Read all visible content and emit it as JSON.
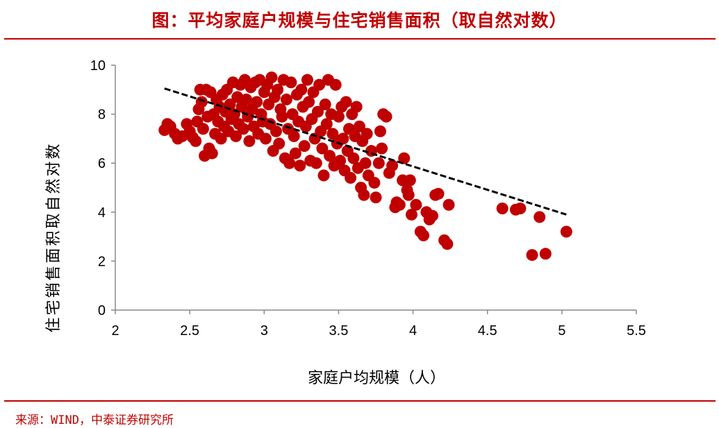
{
  "title": "图：平均家庭户规模与住宅销售面积（取自然对数）",
  "source": "来源：WIND，中泰证券研究所",
  "colors": {
    "accent": "#c00000",
    "points": "#c00000",
    "trend": "#000000"
  },
  "chart_data": {
    "type": "scatter",
    "xlabel": "家庭户均规模（人）",
    "ylabel": "住宅销售面积取自然对数",
    "xlim": [
      2,
      5.5
    ],
    "ylim": [
      0,
      10
    ],
    "xticks": [
      2,
      2.5,
      3,
      3.5,
      4,
      4.5,
      5,
      5.5
    ],
    "yticks": [
      0,
      2,
      4,
      6,
      8,
      10
    ],
    "grid": false,
    "trendline": {
      "style": "dashed",
      "x": [
        2.33,
        5.03
      ],
      "y": [
        9.05,
        3.9
      ]
    },
    "points": [
      [
        2.33,
        7.35
      ],
      [
        2.35,
        7.6
      ],
      [
        2.37,
        7.5
      ],
      [
        2.4,
        7.2
      ],
      [
        2.42,
        7.0
      ],
      [
        2.45,
        7.1
      ],
      [
        2.48,
        7.6
      ],
      [
        2.5,
        7.3
      ],
      [
        2.52,
        7.05
      ],
      [
        2.54,
        6.9
      ],
      [
        2.55,
        7.7
      ],
      [
        2.56,
        8.2
      ],
      [
        2.57,
        9.0
      ],
      [
        2.58,
        8.5
      ],
      [
        2.59,
        7.4
      ],
      [
        2.6,
        6.3
      ],
      [
        2.61,
        9.0
      ],
      [
        2.62,
        7.9
      ],
      [
        2.63,
        6.6
      ],
      [
        2.64,
        8.9
      ],
      [
        2.65,
        6.4
      ],
      [
        2.66,
        8.0
      ],
      [
        2.67,
        7.2
      ],
      [
        2.68,
        8.6
      ],
      [
        2.69,
        7.7
      ],
      [
        2.7,
        8.3
      ],
      [
        2.71,
        7.0
      ],
      [
        2.72,
        8.8
      ],
      [
        2.73,
        7.5
      ],
      [
        2.74,
        8.1
      ],
      [
        2.75,
        9.0
      ],
      [
        2.76,
        7.3
      ],
      [
        2.77,
        8.4
      ],
      [
        2.78,
        7.8
      ],
      [
        2.79,
        9.3
      ],
      [
        2.8,
        8.0
      ],
      [
        2.81,
        7.1
      ],
      [
        2.82,
        8.7
      ],
      [
        2.83,
        7.6
      ],
      [
        2.84,
        9.2
      ],
      [
        2.85,
        8.3
      ],
      [
        2.86,
        7.4
      ],
      [
        2.87,
        9.4
      ],
      [
        2.88,
        8.6
      ],
      [
        2.89,
        7.9
      ],
      [
        2.9,
        6.9
      ],
      [
        2.91,
        9.1
      ],
      [
        2.92,
        8.2
      ],
      [
        2.93,
        7.5
      ],
      [
        2.94,
        9.3
      ],
      [
        2.95,
        8.5
      ],
      [
        2.96,
        7.2
      ],
      [
        2.97,
        9.4
      ],
      [
        2.98,
        8.0
      ],
      [
        2.99,
        7.7
      ],
      [
        3.0,
        8.9
      ],
      [
        3.01,
        7.0
      ],
      [
        3.02,
        9.2
      ],
      [
        3.03,
        8.4
      ],
      [
        3.04,
        7.6
      ],
      [
        3.05,
        9.5
      ],
      [
        3.06,
        6.5
      ],
      [
        3.07,
        8.7
      ],
      [
        3.08,
        7.3
      ],
      [
        3.09,
        9.0
      ],
      [
        3.1,
        6.8
      ],
      [
        3.11,
        8.2
      ],
      [
        3.12,
        7.9
      ],
      [
        3.13,
        9.4
      ],
      [
        3.14,
        6.2
      ],
      [
        3.15,
        8.6
      ],
      [
        3.16,
        7.4
      ],
      [
        3.17,
        6.0
      ],
      [
        3.18,
        9.3
      ],
      [
        3.19,
        8.0
      ],
      [
        3.2,
        7.1
      ],
      [
        3.21,
        6.4
      ],
      [
        3.22,
        8.8
      ],
      [
        3.23,
        7.7
      ],
      [
        3.24,
        5.9
      ],
      [
        3.25,
        9.0
      ],
      [
        3.26,
        8.3
      ],
      [
        3.27,
        6.7
      ],
      [
        3.28,
        7.5
      ],
      [
        3.29,
        9.4
      ],
      [
        3.3,
        8.5
      ],
      [
        3.31,
        6.1
      ],
      [
        3.32,
        7.8
      ],
      [
        3.33,
        8.9
      ],
      [
        3.34,
        7.0
      ],
      [
        3.35,
        6.0
      ],
      [
        3.36,
        8.1
      ],
      [
        3.37,
        9.2
      ],
      [
        3.38,
        7.3
      ],
      [
        3.39,
        6.6
      ],
      [
        3.4,
        5.5
      ],
      [
        3.41,
        8.4
      ],
      [
        3.42,
        7.6
      ],
      [
        3.43,
        9.4
      ],
      [
        3.44,
        6.3
      ],
      [
        3.45,
        8.0
      ],
      [
        3.46,
        7.2
      ],
      [
        3.47,
        5.9
      ],
      [
        3.48,
        9.2
      ],
      [
        3.49,
        6.8
      ],
      [
        3.5,
        7.9
      ],
      [
        3.51,
        6.1
      ],
      [
        3.52,
        8.3
      ],
      [
        3.53,
        7.0
      ],
      [
        3.54,
        5.7
      ],
      [
        3.55,
        8.5
      ],
      [
        3.56,
        6.5
      ],
      [
        3.57,
        7.4
      ],
      [
        3.58,
        5.4
      ],
      [
        3.59,
        8.0
      ],
      [
        3.6,
        6.2
      ],
      [
        3.61,
        7.1
      ],
      [
        3.62,
        8.3
      ],
      [
        3.63,
        5.8
      ],
      [
        3.64,
        7.5
      ],
      [
        3.65,
        5.0
      ],
      [
        3.66,
        6.9
      ],
      [
        3.67,
        4.7
      ],
      [
        3.68,
        6.0
      ],
      [
        3.69,
        7.2
      ],
      [
        3.7,
        5.5
      ],
      [
        3.72,
        6.5
      ],
      [
        3.74,
        5.2
      ],
      [
        3.75,
        4.6
      ],
      [
        3.77,
        6.0
      ],
      [
        3.78,
        7.3
      ],
      [
        3.79,
        6.6
      ],
      [
        3.8,
        8.0
      ],
      [
        3.82,
        7.9
      ],
      [
        3.84,
        5.6
      ],
      [
        3.86,
        5.9
      ],
      [
        3.88,
        4.2
      ],
      [
        3.89,
        4.4
      ],
      [
        3.91,
        4.3
      ],
      [
        3.93,
        5.3
      ],
      [
        3.94,
        6.2
      ],
      [
        3.96,
        4.9
      ],
      [
        3.97,
        4.7
      ],
      [
        3.98,
        5.3
      ],
      [
        3.99,
        3.9
      ],
      [
        4.02,
        4.3
      ],
      [
        4.05,
        3.2
      ],
      [
        4.07,
        3.05
      ],
      [
        4.09,
        4.0
      ],
      [
        4.11,
        3.7
      ],
      [
        4.13,
        3.85
      ],
      [
        4.15,
        4.7
      ],
      [
        4.17,
        4.75
      ],
      [
        4.21,
        2.85
      ],
      [
        4.23,
        2.7
      ],
      [
        4.24,
        4.3
      ],
      [
        4.6,
        4.15
      ],
      [
        4.69,
        4.1
      ],
      [
        4.72,
        4.15
      ],
      [
        4.8,
        2.25
      ],
      [
        4.85,
        3.8
      ],
      [
        4.89,
        2.3
      ],
      [
        5.03,
        3.2
      ]
    ]
  }
}
